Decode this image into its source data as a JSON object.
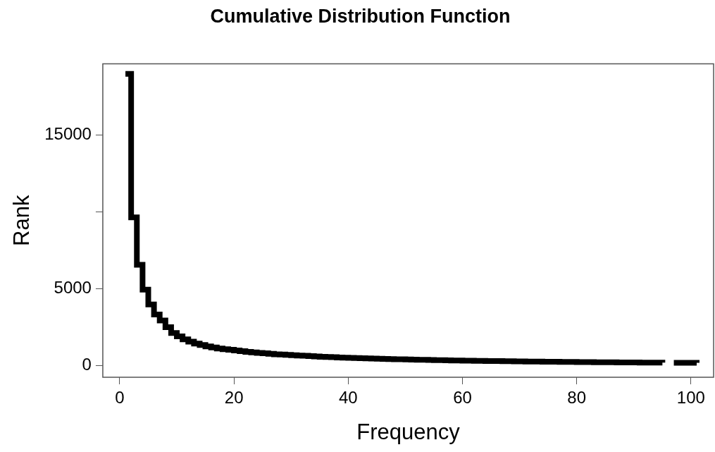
{
  "chart_data": {
    "type": "step",
    "title": "Cumulative Distribution Function",
    "xlabel": "Frequency",
    "ylabel": "Rank",
    "x": [
      1,
      2,
      3,
      4,
      5,
      6,
      7,
      8,
      9,
      10,
      11,
      12,
      13,
      14,
      15,
      16,
      17,
      18,
      19,
      20,
      21,
      22,
      23,
      24,
      25,
      26,
      27,
      28,
      29,
      30,
      31,
      32,
      33,
      34,
      35,
      36,
      37,
      38,
      39,
      40,
      41,
      42,
      43,
      44,
      45,
      46,
      47,
      48,
      49,
      50,
      51,
      52,
      53,
      54,
      55,
      56,
      57,
      58,
      59,
      60,
      61,
      62,
      63,
      64,
      65,
      66,
      67,
      68,
      69,
      70,
      71,
      72,
      73,
      74,
      75,
      76,
      77,
      78,
      79,
      80,
      81,
      82,
      83,
      84,
      85,
      86,
      87,
      88,
      89,
      90,
      91,
      92,
      93,
      94,
      95,
      96,
      97,
      98,
      99,
      100,
      101
    ],
    "series": [
      {
        "color": "#000000",
        "values": [
          19000,
          9650,
          6570,
          4950,
          3990,
          3330,
          2940,
          2500,
          2120,
          1910,
          1715,
          1560,
          1440,
          1340,
          1250,
          1180,
          1120,
          1070,
          1030,
          990,
          940,
          900,
          860,
          830,
          800,
          770,
          740,
          720,
          700,
          680,
          660,
          640,
          620,
          600,
          580,
          565,
          550,
          535,
          520,
          505,
          490,
          480,
          470,
          460,
          450,
          440,
          430,
          420,
          410,
          400,
          395,
          385,
          375,
          370,
          360,
          355,
          345,
          340,
          330,
          325,
          320,
          315,
          310,
          305,
          300,
          295,
          290,
          285,
          280,
          275,
          270,
          265,
          262,
          258,
          254,
          250,
          246,
          242,
          238,
          235,
          232,
          228,
          225,
          222,
          219,
          216,
          213,
          210,
          207,
          204,
          202,
          200,
          198,
          196,
          194,
          null,
          190,
          188,
          186,
          184,
          182
        ]
      }
    ],
    "xlim": [
      -2.96,
      103.96
    ],
    "ylim": [
      -756,
      19656
    ],
    "xticks": [
      0,
      20,
      40,
      60,
      80,
      100
    ],
    "yticks": [
      0,
      5000,
      {
        "value": 10000,
        "label": null
      },
      15000
    ],
    "grid": false,
    "legend": false
  }
}
